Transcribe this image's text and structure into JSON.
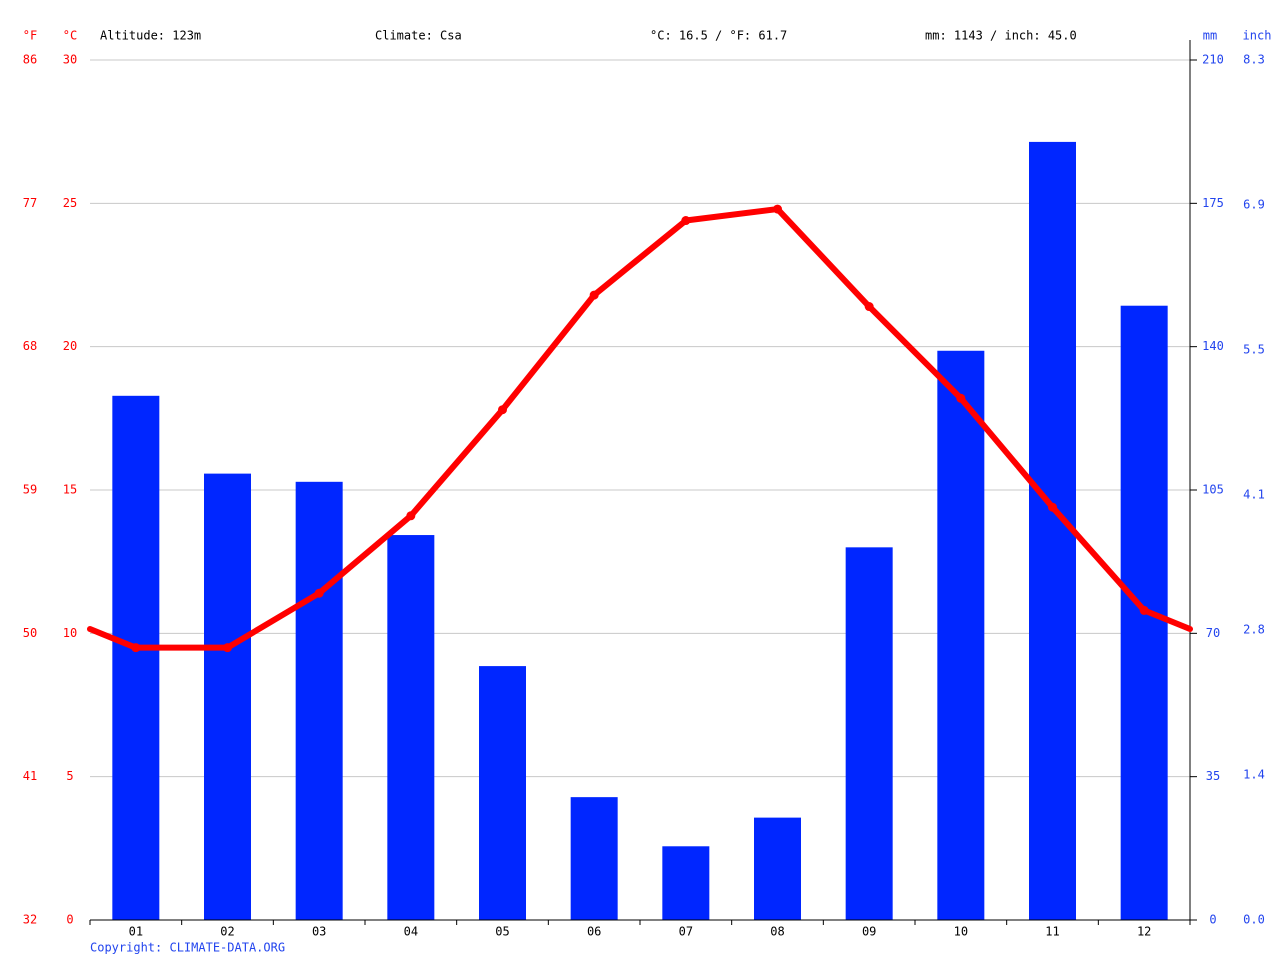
{
  "chart_data": {
    "type": "combo",
    "altitude": "Altitude: 123m",
    "climate": "Climate: Csa",
    "temperature_summary": "°C: 16.5 / °F: 61.7",
    "precipitation_summary": "mm: 1143 / inch: 45.0",
    "copyright": "Copyright: CLIMATE-DATA.ORG",
    "y_unit": "°C",
    "fahrenheit_unit": "°F",
    "y2_unit": "mm",
    "inch_unit": "inch",
    "categories": [
      "01",
      "02",
      "03",
      "04",
      "05",
      "06",
      "07",
      "08",
      "09",
      "10",
      "11",
      "12"
    ],
    "series": [
      {
        "type": "bar",
        "axis": "y2",
        "color": "#0026ff",
        "values": [
          128,
          109,
          107,
          94,
          62,
          30,
          18,
          25,
          91,
          139,
          190,
          150
        ]
      },
      {
        "type": "line",
        "color": "#ff0000",
        "values": [
          9.5,
          9.5,
          11.4,
          14.1,
          17.8,
          21.8,
          24.4,
          24.8,
          21.4,
          18.2,
          14.4,
          10.8
        ]
      }
    ],
    "ylim": [
      0,
      30
    ],
    "yticks": [
      0,
      5,
      10,
      15,
      20,
      25,
      30
    ],
    "fahrenheit_lim": [
      32,
      86
    ],
    "fahrenheit_ticks": [
      32,
      41,
      50,
      59,
      68,
      77,
      86
    ],
    "y2lim": [
      0,
      210
    ],
    "y2ticks": [
      0,
      35,
      70,
      105,
      140,
      175,
      210
    ],
    "inch_lim": [
      0,
      8.3
    ],
    "inch_ticks": [
      {
        "value": 0,
        "label": "0.0"
      },
      1.4,
      2.8,
      4.1,
      5.5,
      6.9,
      8.3
    ],
    "grid": true,
    "left_color": "#ff0000",
    "right_color": "#2244ee"
  }
}
